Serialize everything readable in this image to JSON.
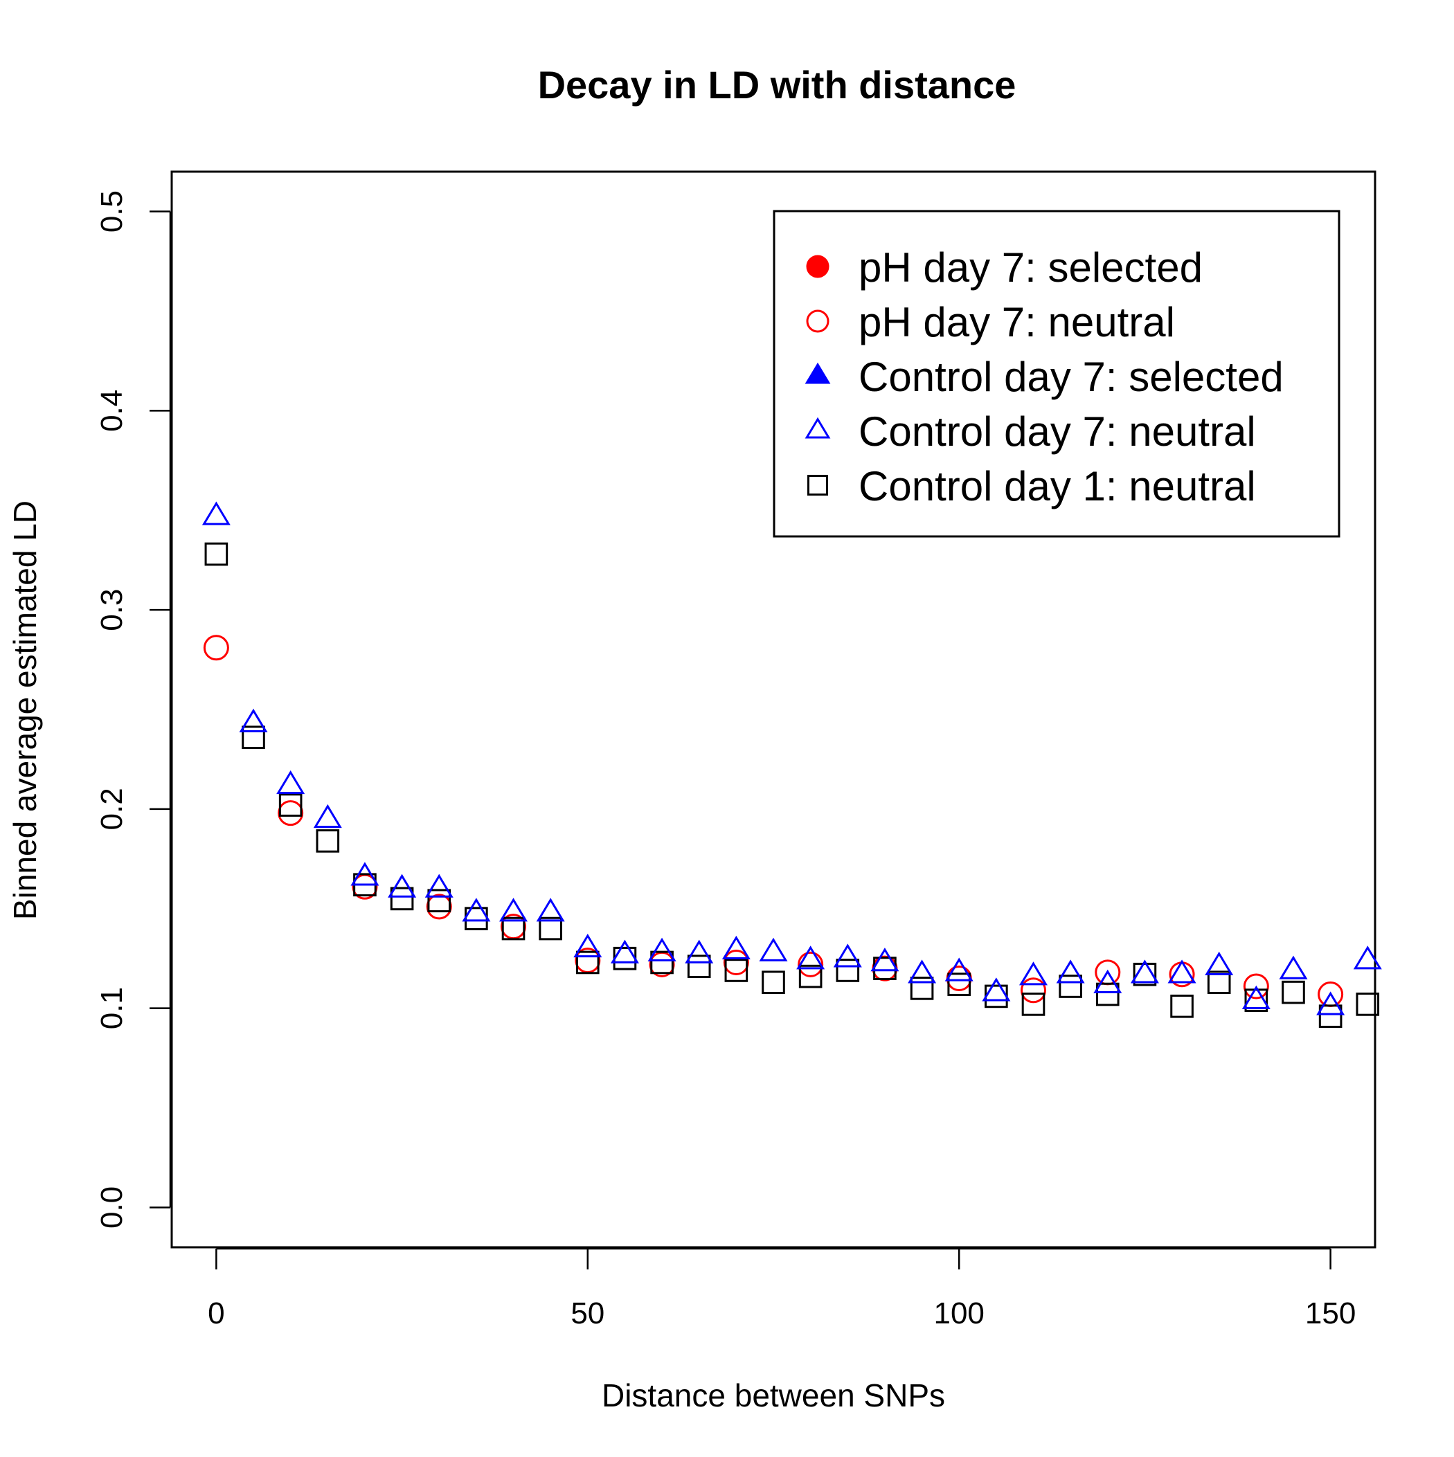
{
  "chart_data": {
    "type": "scatter",
    "title": "Decay in LD with distance",
    "xlabel": "Distance between SNPs",
    "ylabel": "Binned average estimated LD",
    "xlim": [
      -6,
      156
    ],
    "ylim": [
      -0.02,
      0.52
    ],
    "x_ticks": [
      0,
      50,
      100,
      150
    ],
    "y_ticks": [
      0.0,
      0.1,
      0.2,
      0.3,
      0.4,
      0.5
    ],
    "x_tick_labels": [
      "0",
      "50",
      "100",
      "150"
    ],
    "y_tick_labels": [
      "0.0",
      "0.1",
      "0.2",
      "0.3",
      "0.4",
      "0.5"
    ],
    "legend_position": "top-right",
    "x": [
      0,
      5,
      10,
      15,
      20,
      25,
      30,
      35,
      40,
      45,
      50,
      55,
      60,
      65,
      70,
      75,
      80,
      85,
      90,
      95,
      100,
      105,
      110,
      115,
      120,
      125,
      130,
      135,
      140,
      145,
      150,
      155
    ],
    "series": [
      {
        "name": "pH day 7: selected",
        "marker": "filled-circle",
        "color": "#ff0000",
        "values": []
      },
      {
        "name": "pH day 7: neutral",
        "marker": "open-circle",
        "color": "#ff0000",
        "values": [
          0.281,
          null,
          0.198,
          null,
          0.161,
          null,
          0.151,
          null,
          0.141,
          null,
          0.124,
          null,
          0.122,
          null,
          0.123,
          null,
          0.122,
          null,
          0.12,
          null,
          0.115,
          null,
          0.109,
          null,
          0.118,
          null,
          0.117,
          null,
          0.111,
          null,
          0.107,
          null
        ]
      },
      {
        "name": "Control day 7: selected",
        "marker": "filled-triangle",
        "color": "#0000ff",
        "values": []
      },
      {
        "name": "Control day 7: neutral",
        "marker": "open-triangle",
        "color": "#0000ff",
        "values": [
          0.347,
          0.243,
          0.212,
          0.195,
          0.166,
          0.16,
          0.16,
          0.148,
          0.148,
          0.148,
          0.13,
          0.127,
          0.128,
          0.127,
          0.129,
          0.128,
          0.124,
          0.125,
          0.123,
          0.117,
          0.118,
          0.108,
          0.116,
          0.117,
          0.112,
          0.117,
          0.117,
          0.121,
          0.104,
          0.119,
          0.101,
          0.124
        ]
      },
      {
        "name": "Control day 1: neutral",
        "marker": "open-square",
        "color": "#000000",
        "values": [
          0.328,
          0.236,
          0.202,
          0.184,
          0.162,
          0.155,
          0.154,
          0.145,
          0.14,
          0.14,
          0.123,
          0.125,
          0.123,
          0.121,
          0.119,
          0.113,
          0.116,
          0.119,
          0.12,
          0.11,
          0.112,
          0.106,
          0.102,
          0.111,
          0.107,
          0.117,
          0.101,
          0.113,
          0.104,
          0.108,
          0.096,
          0.102
        ]
      }
    ]
  }
}
